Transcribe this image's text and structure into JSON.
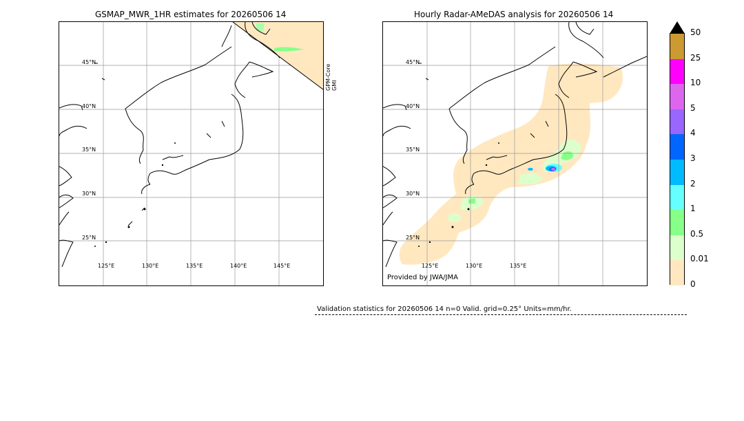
{
  "left_panel": {
    "title": "GSMAP_MWR_1HR estimates for 20260506 14",
    "sensor_labels": [
      "GPM-Core",
      "GMI"
    ]
  },
  "right_panel": {
    "title": "Hourly Radar-AMeDAS analysis for 20260506 14",
    "credit": "Provided by JWA/JMA"
  },
  "lat_labels": [
    "45°N",
    "40°N",
    "35°N",
    "30°N",
    "25°N"
  ],
  "lon_labels_left": [
    "125°E",
    "130°E",
    "135°E",
    "140°E",
    "145°E"
  ],
  "lon_labels_right": [
    "125°E",
    "130°E",
    "135°E"
  ],
  "colorbar": {
    "labels": [
      "50",
      "25",
      "10",
      "5",
      "4",
      "3",
      "2",
      "1",
      "0.5",
      "0.01",
      "0"
    ],
    "colors": [
      "#cc9933",
      "#ff00ff",
      "#dd66ee",
      "#9966ff",
      "#0066ff",
      "#00bbff",
      "#66ffff",
      "#88ff88",
      "#ddffcc",
      "#ffe8c0"
    ],
    "extend_color": "#000000"
  },
  "validation": {
    "text": "Validation statistics for 20260506 14  n=0 Valid. grid=0.25° Units=mm/hr."
  }
}
